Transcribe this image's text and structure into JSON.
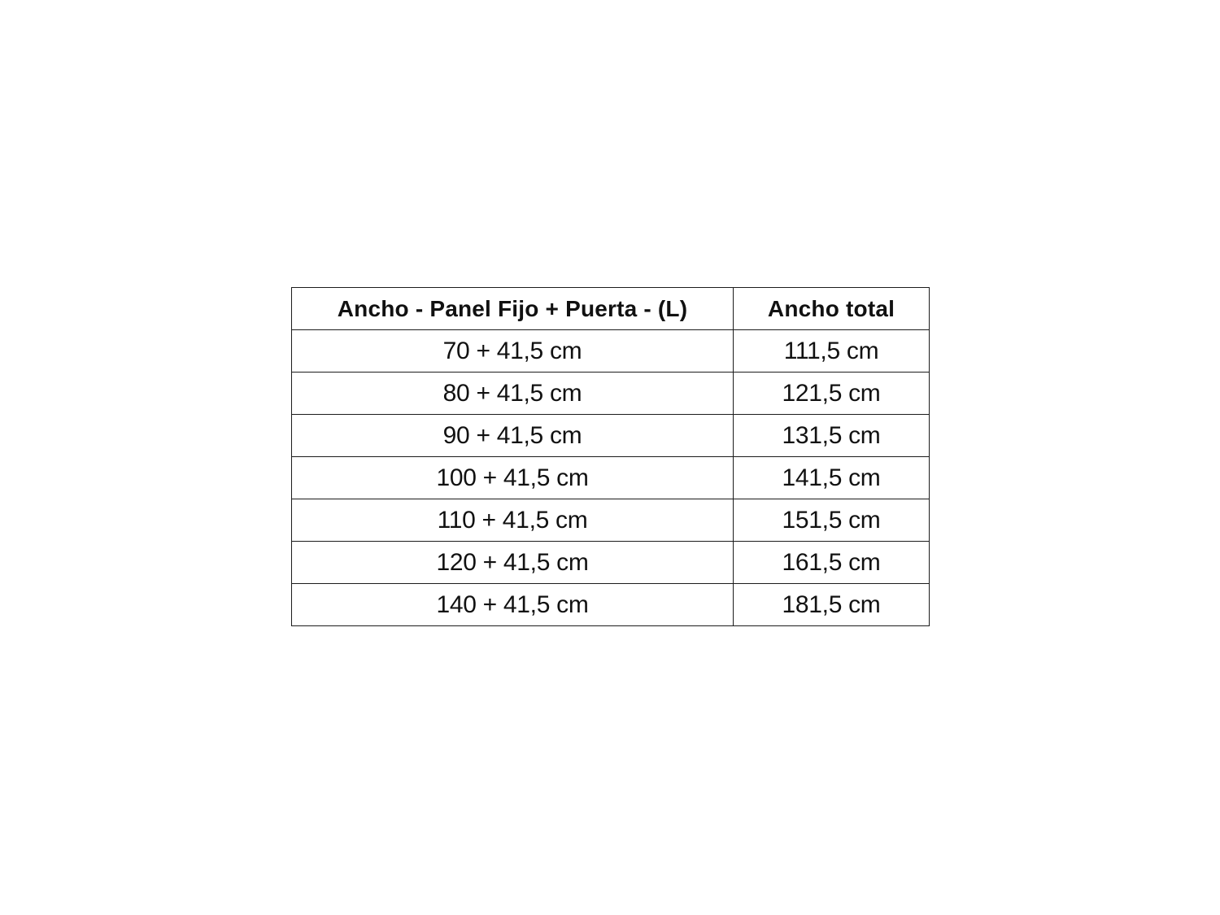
{
  "chart_data": {
    "type": "table",
    "columns": [
      "Ancho - Panel Fijo + Puerta - (L)",
      "Ancho total"
    ],
    "rows": [
      [
        "70 + 41,5 cm",
        "111,5 cm"
      ],
      [
        "80 + 41,5 cm",
        "121,5 cm"
      ],
      [
        "90 + 41,5 cm",
        "131,5 cm"
      ],
      [
        "100 + 41,5 cm",
        "141,5 cm"
      ],
      [
        "110 + 41,5 cm",
        "151,5 cm"
      ],
      [
        "120 + 41,5 cm",
        "161,5 cm"
      ],
      [
        "140 + 41,5 cm",
        "181,5 cm"
      ]
    ],
    "title": "",
    "legend": "none",
    "grid": "full-borders"
  },
  "colors": {
    "background": "#ffffff",
    "border": "#1c1c1c",
    "text": "#111111"
  }
}
